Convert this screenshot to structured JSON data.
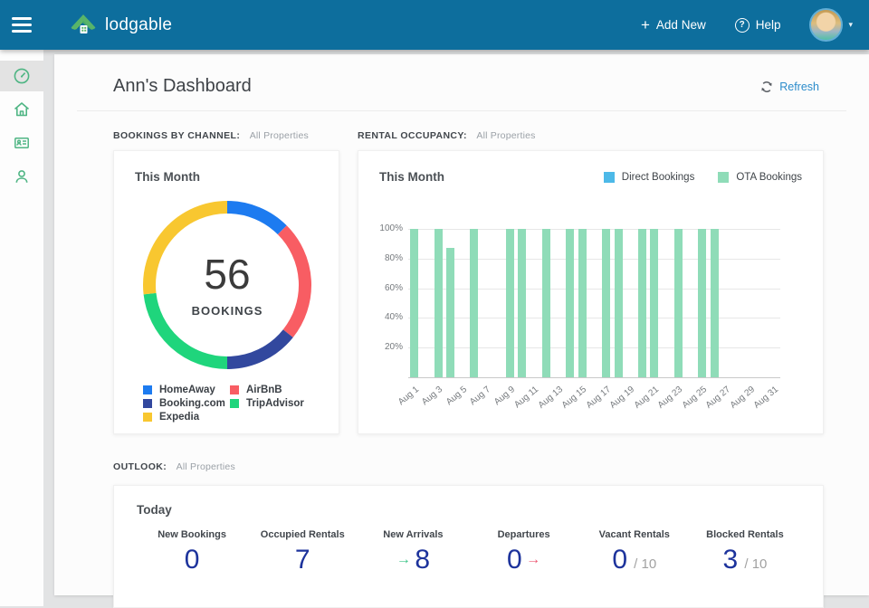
{
  "navbar": {
    "brand": "lodgable",
    "add_new_icon": "+",
    "add_new": "Add New",
    "help_icon": "?",
    "help": "Help",
    "caret_icon": "▾"
  },
  "sidebar": {
    "items": [
      {
        "icon": "dashboard-gauge-icon",
        "active": true
      },
      {
        "icon": "home-icon",
        "active": false
      },
      {
        "icon": "contact-card-icon",
        "active": false
      },
      {
        "icon": "person-icon",
        "active": false
      }
    ]
  },
  "header": {
    "title": "Ann's Dashboard",
    "refresh": "Refresh"
  },
  "sections": {
    "bookings_by_channel": {
      "label": "BOOKINGS BY CHANNEL:",
      "scope": "All Properties"
    },
    "rental_occupancy": {
      "label": "RENTAL OCCUPANCY:",
      "scope": "All Properties"
    },
    "outlook": {
      "label": "OUTLOOK:",
      "scope": "All Properties"
    }
  },
  "chart_data": [
    {
      "type": "pie",
      "variant": "donut",
      "title": "This Month",
      "center_value": "56",
      "center_label": "BOOKINGS",
      "total": 56,
      "slices": [
        {
          "label": "HomeAway",
          "value": 7,
          "color": "#1d7bf0"
        },
        {
          "label": "AirBnB",
          "value": 13,
          "color": "#f85d63"
        },
        {
          "label": "Booking.com",
          "value": 8,
          "color": "#32489e"
        },
        {
          "label": "TripAdvisor",
          "value": 13,
          "color": "#1fd57c"
        },
        {
          "label": "Expedia",
          "value": 15,
          "color": "#f8c730"
        }
      ]
    },
    {
      "type": "bar",
      "title": "This Month",
      "ylim": [
        0,
        100
      ],
      "y_tick_labels": [
        "100%",
        "80%",
        "60%",
        "40%",
        "20%"
      ],
      "x_days": 31,
      "x_tick_labels": [
        {
          "day": 1,
          "label": "Aug 1"
        },
        {
          "day": 3,
          "label": "Aug 3"
        },
        {
          "day": 5,
          "label": "Aug 5"
        },
        {
          "day": 7,
          "label": "Aug 7"
        },
        {
          "day": 9,
          "label": "Aug 9"
        },
        {
          "day": 11,
          "label": "Aug 11"
        },
        {
          "day": 13,
          "label": "Aug 13"
        },
        {
          "day": 15,
          "label": "Aug 15"
        },
        {
          "day": 17,
          "label": "Aug 17"
        },
        {
          "day": 19,
          "label": "Aug 19"
        },
        {
          "day": 21,
          "label": "Aug 21"
        },
        {
          "day": 23,
          "label": "Aug 23"
        },
        {
          "day": 25,
          "label": "Aug 25"
        },
        {
          "day": 27,
          "label": "Aug 27"
        },
        {
          "day": 29,
          "label": "Aug 29"
        },
        {
          "day": 31,
          "label": "Aug 31"
        }
      ],
      "legend": [
        {
          "label": "Direct Bookings",
          "color": "#4db9e8"
        },
        {
          "label": "OTA Bookings",
          "color": "#8fdcb8"
        }
      ],
      "series": [
        {
          "name": "Direct Bookings",
          "color": "#4db9e8",
          "bars": []
        },
        {
          "name": "OTA Bookings",
          "color": "#8fdcb8",
          "bars": [
            {
              "day": 1,
              "value": 100
            },
            {
              "day": 3,
              "value": 100
            },
            {
              "day": 4,
              "value": 87
            },
            {
              "day": 6,
              "value": 100
            },
            {
              "day": 9,
              "value": 100
            },
            {
              "day": 10,
              "value": 100
            },
            {
              "day": 12,
              "value": 100
            },
            {
              "day": 14,
              "value": 100
            },
            {
              "day": 15,
              "value": 100
            },
            {
              "day": 17,
              "value": 100
            },
            {
              "day": 18,
              "value": 100
            },
            {
              "day": 20,
              "value": 100
            },
            {
              "day": 21,
              "value": 100
            },
            {
              "day": 23,
              "value": 100
            },
            {
              "day": 25,
              "value": 100
            },
            {
              "day": 26,
              "value": 100
            }
          ]
        }
      ]
    }
  ],
  "outlook": {
    "card_title": "Today",
    "stats": [
      {
        "label": "New Bookings",
        "value": "0"
      },
      {
        "label": "Occupied Rentals",
        "value": "7"
      },
      {
        "label": "New Arrivals",
        "value": "8",
        "arrow": "→",
        "arrow_position": "before",
        "arrow_color": "#3cc487"
      },
      {
        "label": "Departures",
        "value": "0",
        "arrow": "→",
        "arrow_position": "after",
        "arrow_color": "#ee5a74"
      },
      {
        "label": "Vacant Rentals",
        "value": "0",
        "suffix": "/ 10"
      },
      {
        "label": "Blocked Rentals",
        "value": "3",
        "suffix": "/ 10"
      }
    ]
  },
  "colors": {
    "navbar_bg": "#0d6e9d",
    "sidebar_icon_green": "#4fb584",
    "link_blue": "#2b8ccb",
    "stat_navy": "#1d339c"
  }
}
